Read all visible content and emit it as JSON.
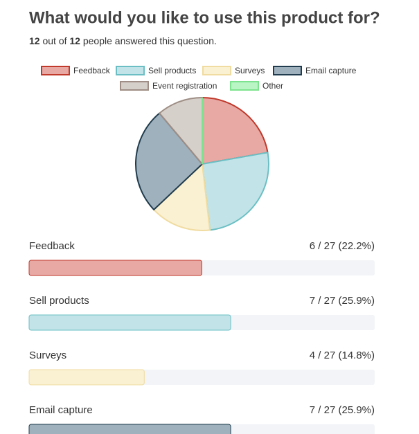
{
  "chart_data": {
    "type": "pie",
    "title": "What would you like to use this product for?",
    "subtitle": {
      "answered": "12",
      "text1": "out of",
      "total": "12",
      "text2": "people answered this question."
    },
    "categories": [
      "Feedback",
      "Sell products",
      "Surveys",
      "Email capture",
      "Event registration",
      "Other"
    ],
    "values": [
      6,
      7,
      4,
      7,
      3,
      0
    ],
    "value_labels": [
      "6 / 27 (22.2%)",
      "7 / 27 (25.9%)",
      "4 / 27 (14.8%)",
      "7 / 27 (25.9%)",
      null,
      null
    ],
    "colors": [
      "#e8a9a5",
      "#c2e4e8",
      "#faf0d2",
      "#9fb1bd",
      "#d6d0ca",
      "#b9f5c5"
    ],
    "stroke_colors": [
      "#c0392b",
      "#6bbfc4",
      "#f0dca0",
      "#1f3b4d",
      "#9e8e85",
      "#7de38f"
    ],
    "xlim": [
      0,
      12
    ]
  }
}
